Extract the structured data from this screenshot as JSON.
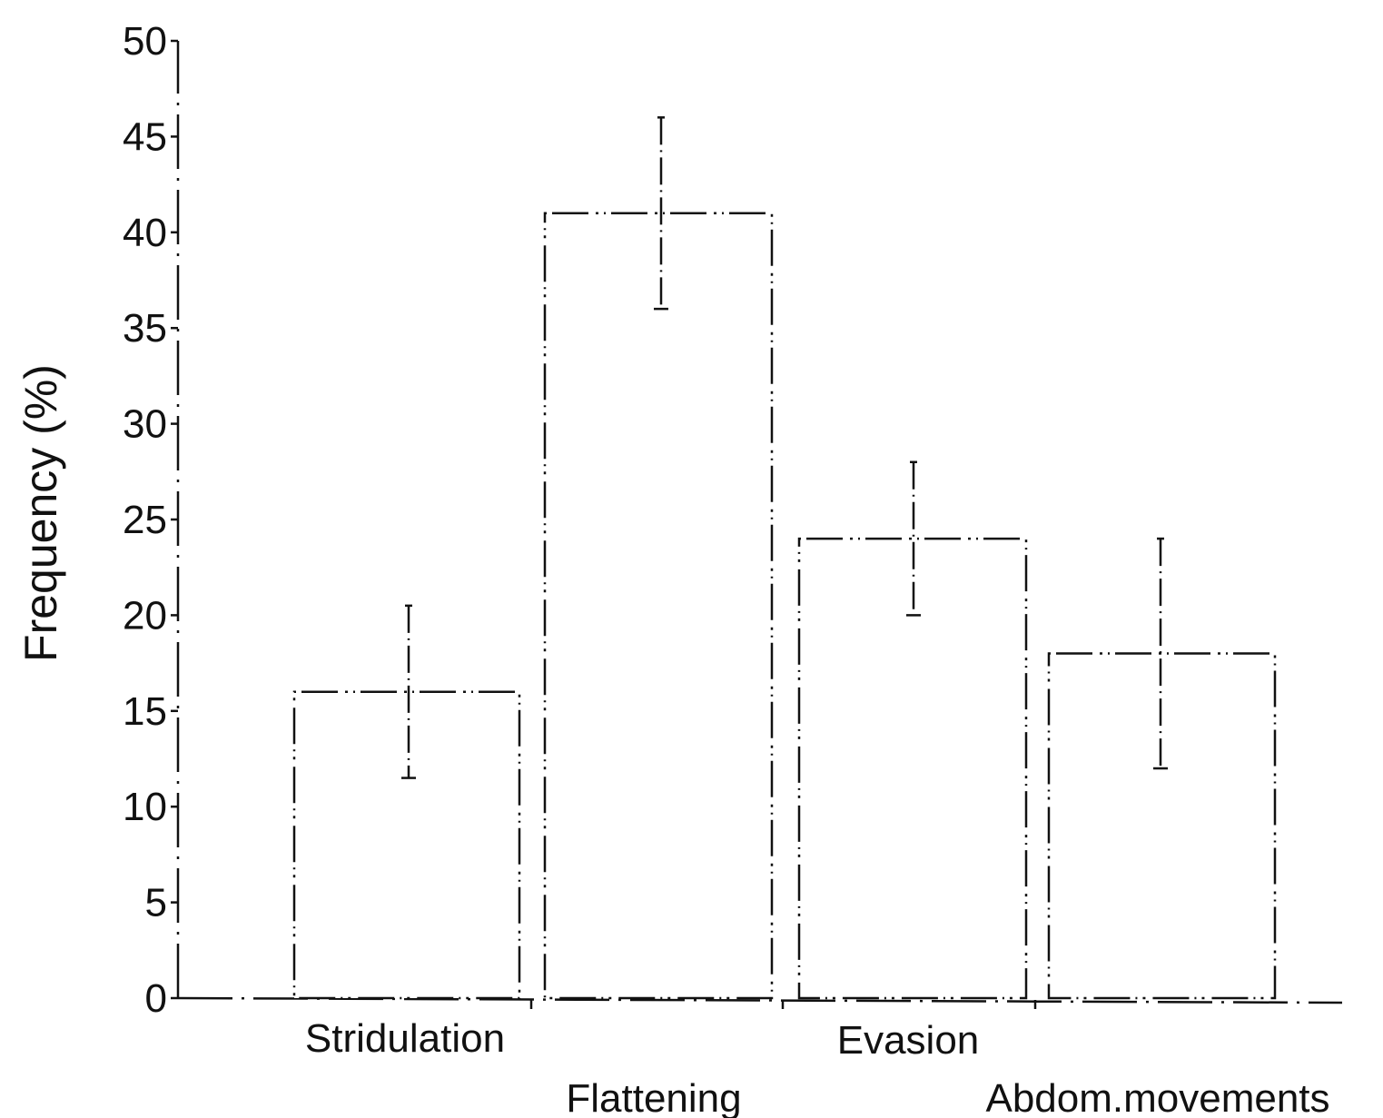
{
  "chart_data": {
    "type": "bar",
    "title": "",
    "xlabel": "",
    "ylabel": "Frequency (%)",
    "ylim": [
      0,
      50
    ],
    "yticks": [
      0,
      5,
      10,
      15,
      20,
      25,
      30,
      35,
      40,
      45,
      50
    ],
    "grid": false,
    "categories": [
      "Stridulation",
      "Flattening",
      "Evasion",
      "Abdom.movements"
    ],
    "values": [
      16,
      41,
      24,
      18
    ],
    "error_low": [
      11.5,
      36,
      20,
      12
    ],
    "error_high": [
      20.5,
      46,
      28,
      24
    ],
    "colors": {
      "bar_fill": "#ffffff",
      "stroke": "#111111"
    }
  }
}
